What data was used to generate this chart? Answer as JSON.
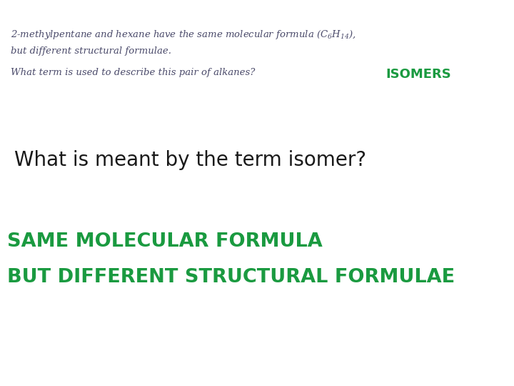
{
  "background_color": "#ffffff",
  "line1": "2-methylpentane and hexane have the same molecular formula ($\\mathregular{C_6H_{14}}$),",
  "line2": "but different structural formulae.",
  "question_text": "What term is used to describe this pair of alkanes?  ",
  "isomers_text": "ISOMERS",
  "main_question": "What is meant by the term isomer?",
  "answer_line1": "SAME MOLECULAR FORMULA",
  "answer_line2": "BUT DIFFERENT STRUCTURAL FORMULAE",
  "top_text_color": "#4a4a6a",
  "isomers_color": "#1a9a40",
  "main_question_color": "#1a1a1a",
  "answer_color": "#1a9a40",
  "fig_width": 7.2,
  "fig_height": 5.4,
  "dpi": 100
}
